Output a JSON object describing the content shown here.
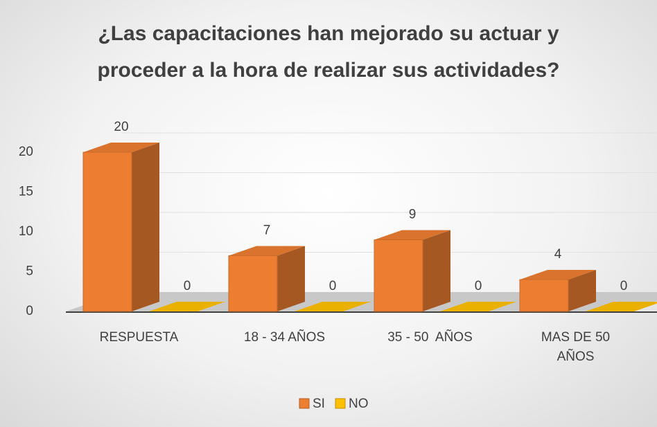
{
  "chart_data": {
    "type": "bar3d",
    "title": "¿Las capacitaciones han mejorado su actuar y proceder a la hora de realizar sus actividades?",
    "categories": [
      "RESPUESTA",
      "18 - 34 AÑOS",
      "35 - 50  AÑOS",
      "MAS DE 50 AÑOS"
    ],
    "series": [
      {
        "name": "SI",
        "color": "#ed7d31",
        "values": [
          20,
          7,
          9,
          4
        ]
      },
      {
        "name": "NO",
        "color": "#ffc000",
        "values": [
          0,
          0,
          0,
          0
        ]
      }
    ],
    "ylim": [
      0,
      20
    ],
    "yticks": [
      0,
      5,
      10,
      15,
      20
    ],
    "grid": true,
    "legend": "bottom"
  }
}
